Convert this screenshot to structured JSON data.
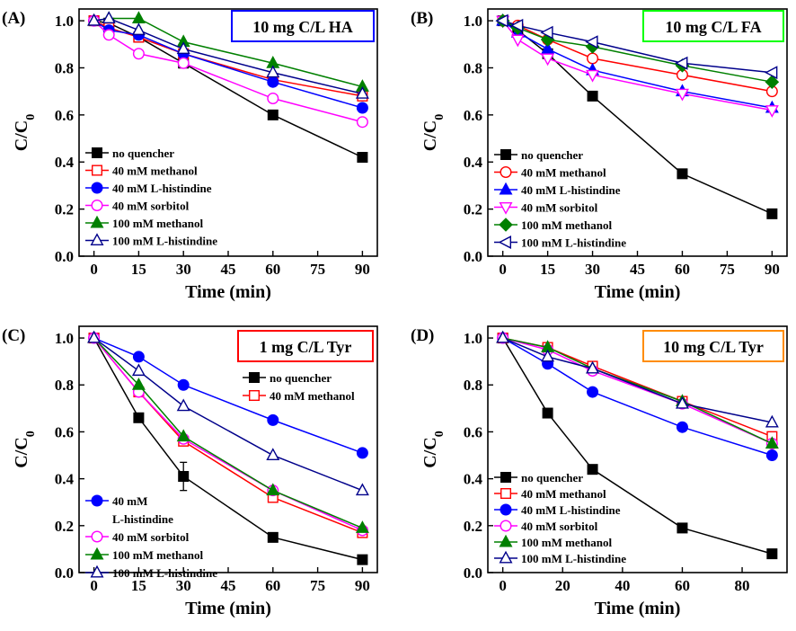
{
  "colors": {
    "no_quencher": "#000000",
    "methanol_40": "#ff0000",
    "histidine_40": "#0000ff",
    "sorbitol_40": "#ff00ff",
    "methanol_100": "#008000",
    "histidine_100": "#00008b",
    "box_blue": "#0000ff",
    "box_green": "#00ff00",
    "box_red": "#ff0000",
    "box_orange": "#ff8c00"
  },
  "chart_data": [
    {
      "type": "line",
      "panel_label": "(A)",
      "title": "10 mg C/L HA",
      "title_box_color": "#0000ff",
      "xlabel": "Time (min)",
      "ylabel": "C/C0",
      "ylabel_main": "C/C",
      "ylabel_sub": "0",
      "xlim": [
        -5,
        95
      ],
      "ylim": [
        0,
        1.05
      ],
      "xticks": [
        "0",
        "15",
        "30",
        "45",
        "60",
        "75",
        "90"
      ],
      "yticks": [
        "0.0",
        "0.2",
        "0.4",
        "0.6",
        "0.8",
        "1.0"
      ],
      "legend_position": "lower-left",
      "series": [
        {
          "name": "no quencher",
          "marker": "square-filled",
          "color": "#000000",
          "x": [
            0,
            5,
            15,
            30,
            60,
            90
          ],
          "y": [
            1.0,
            0.99,
            0.93,
            0.82,
            0.6,
            0.42
          ]
        },
        {
          "name": "40 mM methanol",
          "marker": "square-open",
          "color": "#ff0000",
          "x": [
            0,
            5,
            15,
            30,
            60,
            90
          ],
          "y": [
            1.0,
            0.97,
            0.93,
            0.86,
            0.75,
            0.68
          ]
        },
        {
          "name": "40 mM L-histindine",
          "marker": "circle-filled",
          "color": "#0000ff",
          "x": [
            0,
            5,
            15,
            30,
            60,
            90
          ],
          "y": [
            1.0,
            0.96,
            0.94,
            0.86,
            0.74,
            0.63
          ]
        },
        {
          "name": "40 mM sorbitol",
          "marker": "circle-open",
          "color": "#ff00ff",
          "x": [
            0,
            5,
            15,
            30,
            60,
            90
          ],
          "y": [
            1.0,
            0.94,
            0.86,
            0.82,
            0.67,
            0.57
          ]
        },
        {
          "name": "100 mM methanol",
          "marker": "triangle-filled",
          "color": "#008000",
          "x": [
            0,
            5,
            15,
            30,
            60,
            90
          ],
          "y": [
            1.0,
            1.01,
            1.01,
            0.91,
            0.82,
            0.72
          ]
        },
        {
          "name": "100 mM L-histindine",
          "marker": "triangle-open",
          "color": "#00008b",
          "x": [
            0,
            5,
            15,
            30,
            60,
            90
          ],
          "y": [
            1.0,
            1.01,
            0.96,
            0.88,
            0.78,
            0.69
          ]
        }
      ]
    },
    {
      "type": "line",
      "panel_label": "(B)",
      "title": "10 mg C/L FA",
      "title_box_color": "#00ff00",
      "xlabel": "Time (min)",
      "ylabel": "C/C0",
      "ylabel_main": "C/C",
      "ylabel_sub": "0",
      "xlim": [
        -5,
        95
      ],
      "ylim": [
        0,
        1.05
      ],
      "xticks": [
        "0",
        "15",
        "30",
        "45",
        "60",
        "75",
        "90"
      ],
      "yticks": [
        "0.0",
        "0.2",
        "0.4",
        "0.6",
        "0.8",
        "1.0"
      ],
      "legend_position": "lower-left",
      "series": [
        {
          "name": "no quencher",
          "marker": "square-filled",
          "color": "#000000",
          "x": [
            0,
            5,
            15,
            30,
            60,
            90
          ],
          "y": [
            1.0,
            0.96,
            0.86,
            0.68,
            0.35,
            0.18
          ]
        },
        {
          "name": "40 mM methanol",
          "marker": "circle-open",
          "color": "#ff0000",
          "x": [
            0,
            5,
            15,
            30,
            60,
            90
          ],
          "y": [
            1.0,
            0.98,
            0.92,
            0.84,
            0.77,
            0.7
          ]
        },
        {
          "name": "40 mM L-histindine",
          "marker": "triangle-filled",
          "color": "#0000ff",
          "x": [
            0,
            5,
            15,
            30,
            60,
            90
          ],
          "y": [
            1.0,
            0.95,
            0.88,
            0.79,
            0.7,
            0.63
          ]
        },
        {
          "name": "40 mM sorbitol",
          "marker": "triangle-down-open",
          "color": "#ff00ff",
          "x": [
            0,
            5,
            15,
            30,
            60,
            90
          ],
          "y": [
            1.0,
            0.92,
            0.84,
            0.77,
            0.69,
            0.62
          ]
        },
        {
          "name": "100 mM methanol",
          "marker": "diamond-filled",
          "color": "#008000",
          "x": [
            0,
            5,
            15,
            30,
            60,
            90
          ],
          "y": [
            1.0,
            0.97,
            0.92,
            0.89,
            0.81,
            0.74
          ]
        },
        {
          "name": "100 mM L-histindine",
          "marker": "triangle-left-open",
          "color": "#00008b",
          "x": [
            0,
            5,
            15,
            30,
            60,
            90
          ],
          "y": [
            1.0,
            0.98,
            0.95,
            0.91,
            0.82,
            0.78
          ]
        }
      ]
    },
    {
      "type": "line",
      "panel_label": "(C)",
      "title": "1 mg C/L Tyr",
      "title_box_color": "#ff0000",
      "xlabel": "Time (min)",
      "ylabel": "C/C0",
      "ylabel_main": "C/C",
      "ylabel_sub": "0",
      "xlim": [
        -5,
        95
      ],
      "ylim": [
        0,
        1.05
      ],
      "xticks": [
        "0",
        "15",
        "30",
        "45",
        "60",
        "75",
        "90"
      ],
      "yticks": [
        "0.0",
        "0.2",
        "0.4",
        "0.6",
        "0.8",
        "1.0"
      ],
      "legend_position": "split: upper-right and lower-left",
      "series": [
        {
          "name": "no quencher",
          "marker": "square-filled",
          "color": "#000000",
          "x": [
            0,
            15,
            30,
            60,
            90
          ],
          "y": [
            1.0,
            0.66,
            0.41,
            0.15,
            0.055
          ],
          "error": [
            0,
            0,
            0.06,
            0,
            0
          ]
        },
        {
          "name": "40 mM methanol",
          "marker": "square-open",
          "color": "#ff0000",
          "x": [
            0,
            15,
            30,
            60,
            90
          ],
          "y": [
            1.0,
            0.77,
            0.56,
            0.32,
            0.17
          ]
        },
        {
          "name": "40 mM L-histindine",
          "label_lines": [
            "40 mM",
            "L-histindine"
          ],
          "marker": "circle-filled",
          "color": "#0000ff",
          "x": [
            0,
            15,
            30,
            60,
            90
          ],
          "y": [
            1.0,
            0.92,
            0.8,
            0.65,
            0.51
          ]
        },
        {
          "name": "40 mM sorbitol",
          "marker": "circle-open",
          "color": "#ff00ff",
          "x": [
            0,
            15,
            30,
            60,
            90
          ],
          "y": [
            1.0,
            0.77,
            0.57,
            0.35,
            0.18
          ]
        },
        {
          "name": "100 mM methanol",
          "marker": "triangle-filled",
          "color": "#008000",
          "x": [
            0,
            15,
            30,
            60,
            90
          ],
          "y": [
            1.0,
            0.8,
            0.58,
            0.35,
            0.19
          ]
        },
        {
          "name": "100 mM L-histindine",
          "marker": "triangle-open",
          "color": "#00008b",
          "x": [
            0,
            15,
            30,
            60,
            90
          ],
          "y": [
            1.0,
            0.86,
            0.71,
            0.5,
            0.35
          ]
        }
      ]
    },
    {
      "type": "line",
      "panel_label": "(D)",
      "title": "10 mg C/L Tyr",
      "title_box_color": "#ff8c00",
      "xlabel": "Time (min)",
      "ylabel": "C/C0",
      "ylabel_main": "C/C",
      "ylabel_sub": "0",
      "xlim": [
        -5,
        95
      ],
      "ylim": [
        0,
        1.05
      ],
      "xticks": [
        "0",
        "20",
        "40",
        "60",
        "80"
      ],
      "yticks": [
        "0.0",
        "0.2",
        "0.4",
        "0.6",
        "0.8",
        "1.0"
      ],
      "legend_position": "lower-left",
      "series": [
        {
          "name": "no quencher",
          "marker": "square-filled",
          "color": "#000000",
          "x": [
            0,
            15,
            30,
            60,
            90
          ],
          "y": [
            1.0,
            0.68,
            0.44,
            0.19,
            0.08
          ]
        },
        {
          "name": "40 mM methanol",
          "marker": "square-open",
          "color": "#ff0000",
          "x": [
            0,
            15,
            30,
            60,
            90
          ],
          "y": [
            1.0,
            0.96,
            0.88,
            0.73,
            0.58
          ]
        },
        {
          "name": "40 mM L-histindine",
          "marker": "circle-filled",
          "color": "#0000ff",
          "x": [
            0,
            15,
            30,
            60,
            90
          ],
          "y": [
            1.0,
            0.89,
            0.77,
            0.62,
            0.5
          ]
        },
        {
          "name": "40 mM sorbitol",
          "marker": "circle-open",
          "color": "#ff00ff",
          "x": [
            0,
            15,
            30,
            60,
            90
          ],
          "y": [
            1.0,
            0.95,
            0.86,
            0.72,
            0.55
          ]
        },
        {
          "name": "100 mM methanol",
          "marker": "triangle-filled",
          "color": "#008000",
          "x": [
            0,
            15,
            30,
            60,
            90
          ],
          "y": [
            1.0,
            0.96,
            0.87,
            0.73,
            0.55
          ]
        },
        {
          "name": "100 mM L-histindine",
          "marker": "triangle-open",
          "color": "#00008b",
          "x": [
            0,
            15,
            30,
            60,
            90
          ],
          "y": [
            1.0,
            0.92,
            0.87,
            0.72,
            0.64
          ]
        }
      ]
    }
  ]
}
